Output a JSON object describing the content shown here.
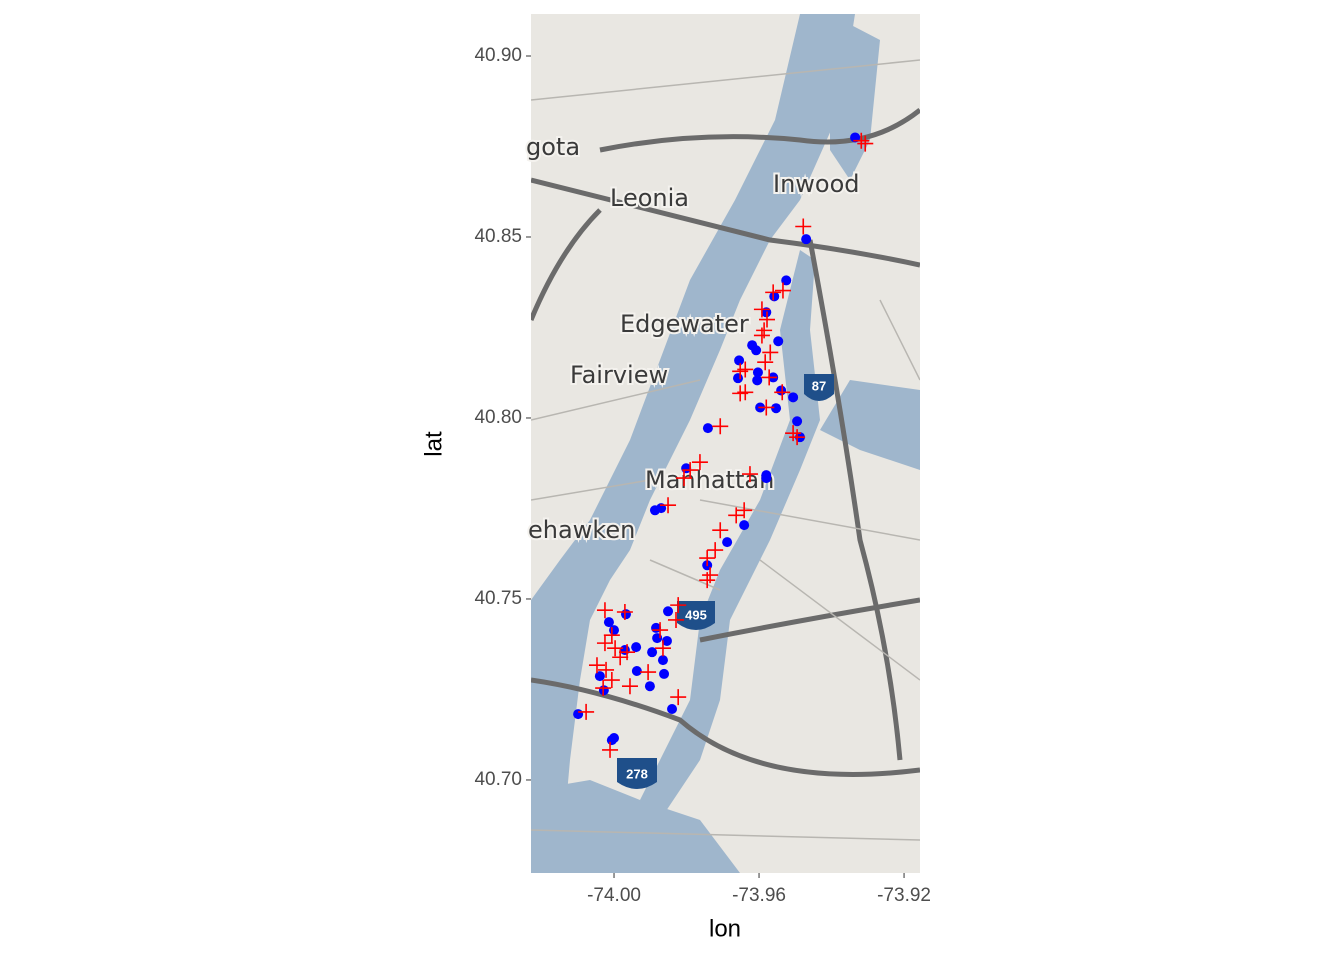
{
  "chart_data": {
    "type": "scatter",
    "x_label": "lon",
    "y_label": "lat",
    "xlim": [
      -74.0229,
      -73.9156
    ],
    "ylim": [
      40.6743,
      40.9116
    ],
    "xticks": [
      {
        "value": -74.0,
        "label": "-74.00"
      },
      {
        "value": -73.96,
        "label": "-73.96"
      },
      {
        "value": -73.92,
        "label": "-73.92"
      }
    ],
    "yticks": [
      {
        "value": 40.7,
        "label": "40.70"
      },
      40.75,
      {
        "value": 40.8,
        "label": "40.80"
      },
      40.85,
      {
        "value": 40.9,
        "label": "40.90"
      }
    ],
    "grid": false,
    "series": [
      {
        "color": "#0000ff",
        "marker": "circle",
        "x": [
          -73.9335,
          -73.947,
          -73.9525,
          -73.9558,
          -73.958,
          -73.9619,
          -73.9608,
          -73.9547,
          -73.9655,
          -73.9658,
          -73.9603,
          -73.9605,
          -73.9561,
          -73.9539,
          -73.9506,
          -73.9597,
          -73.9553,
          -73.9495,
          -73.9487,
          -73.9741,
          -73.9801,
          -73.958,
          -73.958,
          -73.9887,
          -73.987,
          -73.9641,
          -73.9688,
          -73.9743,
          -73.9851,
          -73.9967,
          -74.0014,
          -74.0,
          -73.9884,
          -73.9939,
          -73.997,
          -73.9881,
          -73.9854,
          -73.9895,
          -73.9865,
          -73.9862,
          -73.9937,
          -73.9901,
          -74.0039,
          -74.0028,
          -73.984,
          -74.0099,
          -74.0,
          -74.0006
        ],
        "y": [
          40.8775,
          40.8494,
          40.838,
          40.8336,
          40.8292,
          40.8201,
          40.8187,
          40.8212,
          40.8159,
          40.811,
          40.8126,
          40.8104,
          40.8112,
          40.8076,
          40.8057,
          40.8029,
          40.8027,
          40.7991,
          40.7947,
          40.7972,
          40.7861,
          40.7842,
          40.7834,
          40.7745,
          40.7751,
          40.7704,
          40.7657,
          40.7593,
          40.7466,
          40.7458,
          40.7436,
          40.7414,
          40.742,
          40.7367,
          40.7359,
          40.7392,
          40.7384,
          40.7353,
          40.7331,
          40.7293,
          40.7301,
          40.7259,
          40.7287,
          40.7248,
          40.7196,
          40.7182,
          40.7116,
          40.711
        ]
      },
      {
        "color": "#ff0000",
        "marker": "plus",
        "x": [
          -73.9318,
          -73.9307,
          -73.9478,
          -73.9534,
          -73.9561,
          -73.9592,
          -73.9578,
          -73.9586,
          -73.9592,
          -73.9569,
          -73.9583,
          -73.9652,
          -73.9638,
          -73.9572,
          -73.9638,
          -73.9652,
          -73.9536,
          -73.958,
          -73.9506,
          -73.9495,
          -73.9707,
          -73.9763,
          -73.979,
          -73.9807,
          -73.9625,
          -73.9851,
          -73.9641,
          -73.9663,
          -73.9707,
          -73.9721,
          -73.9743,
          -73.9735,
          -73.9743,
          -73.9823,
          -73.9829,
          -74.0025,
          -73.997,
          -74.0006,
          -74.0025,
          -73.9997,
          -73.9964,
          -73.9983,
          -73.9873,
          -73.9865,
          -73.9906,
          -74.0047,
          -74.0022,
          -74.0006,
          -74.003,
          -73.9956,
          -73.9823,
          -74.0077,
          -74.0011
        ],
        "y": [
          40.8766,
          40.8758,
          40.8529,
          40.8352,
          40.8347,
          40.83,
          40.8272,
          40.8242,
          40.8228,
          40.8181,
          40.8154,
          40.8129,
          40.8134,
          40.8112,
          40.8071,
          40.8068,
          40.8071,
          40.8029,
          40.7958,
          40.7947,
          40.7977,
          40.7878,
          40.7856,
          40.7834,
          40.7845,
          40.7759,
          40.7745,
          40.7731,
          40.769,
          40.7635,
          40.7613,
          40.7566,
          40.7552,
          40.7483,
          40.7442,
          40.7469,
          40.7464,
          40.74,
          40.7378,
          40.7364,
          40.7353,
          40.7339,
          40.7414,
          40.7364,
          40.7298,
          40.7317,
          40.7304,
          40.7276,
          40.7254,
          40.7259,
          40.7229,
          40.7188,
          40.7083
        ]
      }
    ]
  },
  "map_labels": {
    "places": [
      "gota",
      "Leonia",
      "Inwood",
      "Edgewater",
      "Fairview",
      "Manhattan",
      "ehawken"
    ],
    "shields": [
      "87",
      "495",
      "278"
    ]
  }
}
